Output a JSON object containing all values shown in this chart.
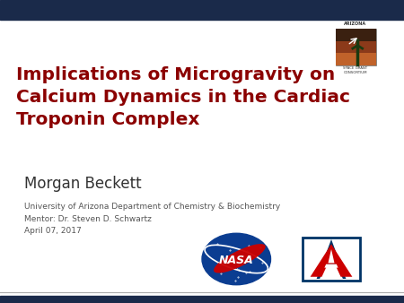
{
  "title_line1": "Implications of Microgravity on",
  "title_line2": "Calcium Dynamics in the Cardiac",
  "title_line3": "Troponin Complex",
  "title_color": "#8B0000",
  "author": "Morgan Beckett",
  "author_color": "#333333",
  "institution": "University of Arizona Department of Chemistry & Biochemistry",
  "mentor": "Mentor: Dr. Steven D. Schwartz",
  "date": "April 07, 2017",
  "info_color": "#555555",
  "bg_color": "#FFFFFF",
  "header_bar_color": "#1a2a4a",
  "footer_bar_color": "#1a2a4a",
  "accent_line_color": "#aaaaaa",
  "header_bar_height": 0.065,
  "footer_bar_height": 0.025
}
